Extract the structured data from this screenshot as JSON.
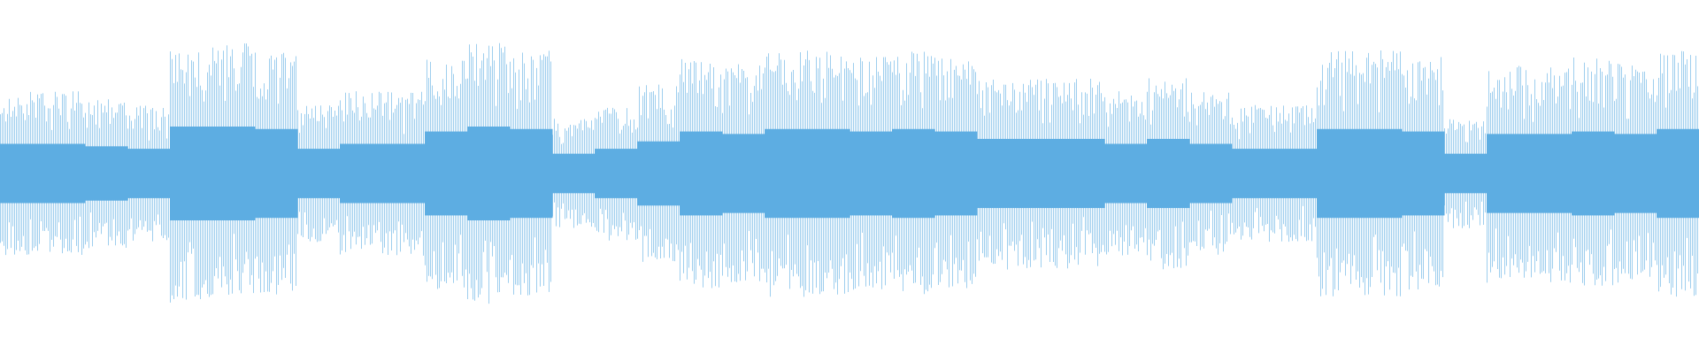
{
  "waveform": {
    "color": "#5dade2",
    "peaks": [
      0.6,
      0.6,
      0.55,
      0.5,
      0.95,
      0.95,
      0.9,
      0.5,
      0.6,
      0.6,
      0.85,
      0.95,
      0.9,
      0.4,
      0.5,
      0.65,
      0.85,
      0.8,
      0.9,
      0.9,
      0.85,
      0.9,
      0.85,
      0.7,
      0.7,
      0.7,
      0.6,
      0.7,
      0.6,
      0.5,
      0.5,
      0.9,
      0.9,
      0.85,
      0.4,
      0.8,
      0.8,
      0.85,
      0.8,
      0.9
    ]
  }
}
